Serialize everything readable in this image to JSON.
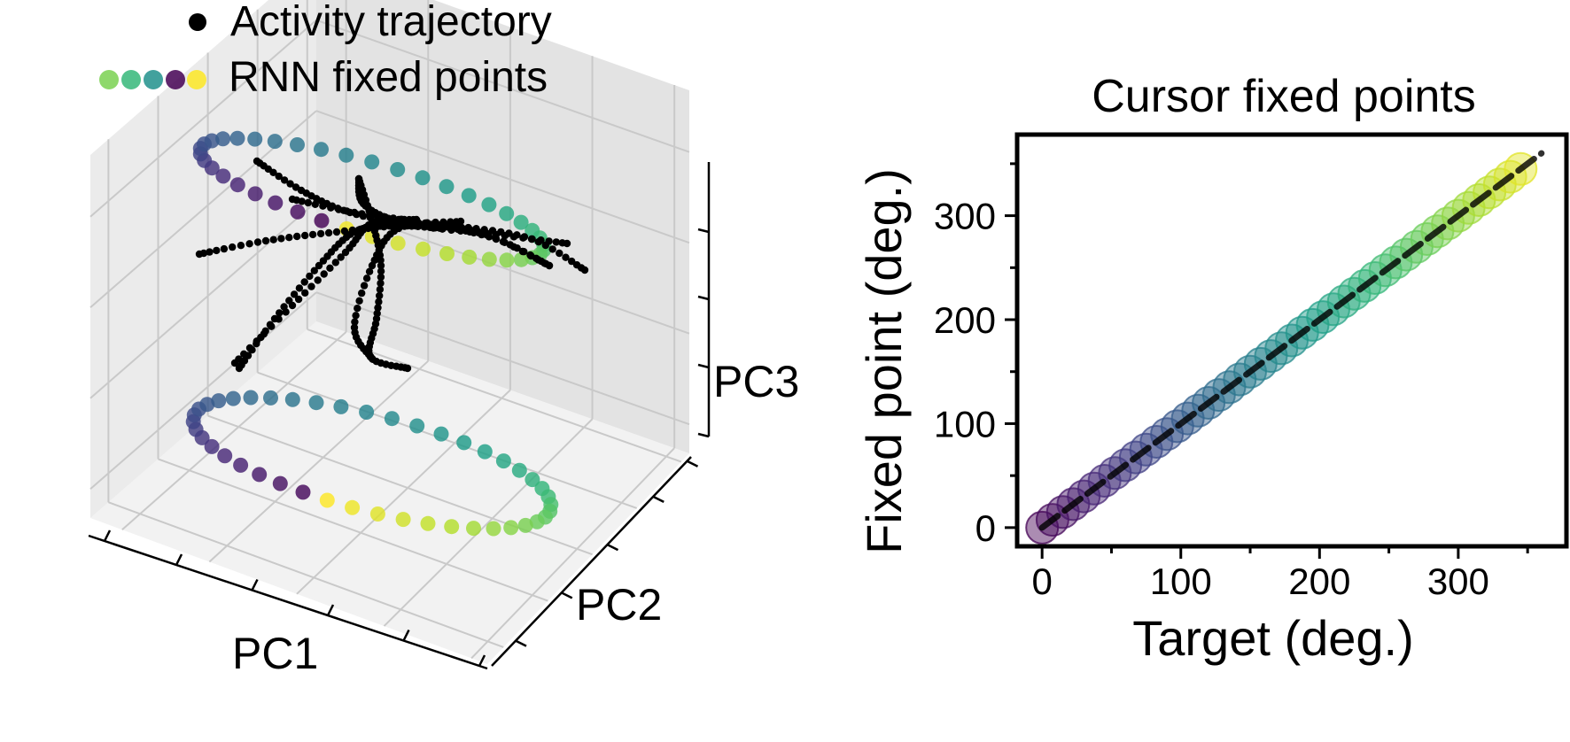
{
  "legend": {
    "trajectory_label": "Activity trajectory",
    "fixed_points_label": "RNN fixed points",
    "fixed_point_swatch_colors": [
      "#7ad151",
      "#35b779",
      "#21918c",
      "#3b528b",
      "#440154",
      "#fde725"
    ]
  },
  "chart_data": [
    {
      "type": "scatter",
      "projection": "3d",
      "xlabel": "PC1",
      "ylabel": "PC2",
      "zlabel": "PC3",
      "tick_labels_shown": false,
      "grid": true,
      "legend_placement": "top-left",
      "colormap": "viridis",
      "series": [
        {
          "name": "Activity trajectory",
          "color": "#000000",
          "marker": "small dots",
          "num_curves": 8
        },
        {
          "name": "RNN fixed points",
          "colormap": "viridis",
          "num_rings": 2,
          "note_values": "color encodes target angle 0-360 deg"
        }
      ]
    },
    {
      "type": "scatter",
      "title": "Cursor fixed points",
      "xlabel": "Target (deg.)",
      "ylabel": "Fixed point (deg.)",
      "xlim": [
        -18,
        378
      ],
      "ylim": [
        -18,
        378
      ],
      "xticks": [
        "0",
        "100",
        "200",
        "300"
      ],
      "yticks": [
        "0",
        "100",
        "200",
        "300"
      ],
      "grid": false,
      "series": [
        {
          "name": "fixed points",
          "colormap": "viridis",
          "alpha": 0.5,
          "x_start": 0,
          "x_end": 350,
          "x_step": 7.5,
          "y_equals_x": true
        },
        {
          "name": "identity",
          "color": "#000000",
          "style": "dashed",
          "x": [
            0,
            360
          ],
          "y": [
            0,
            360
          ]
        }
      ]
    }
  ]
}
